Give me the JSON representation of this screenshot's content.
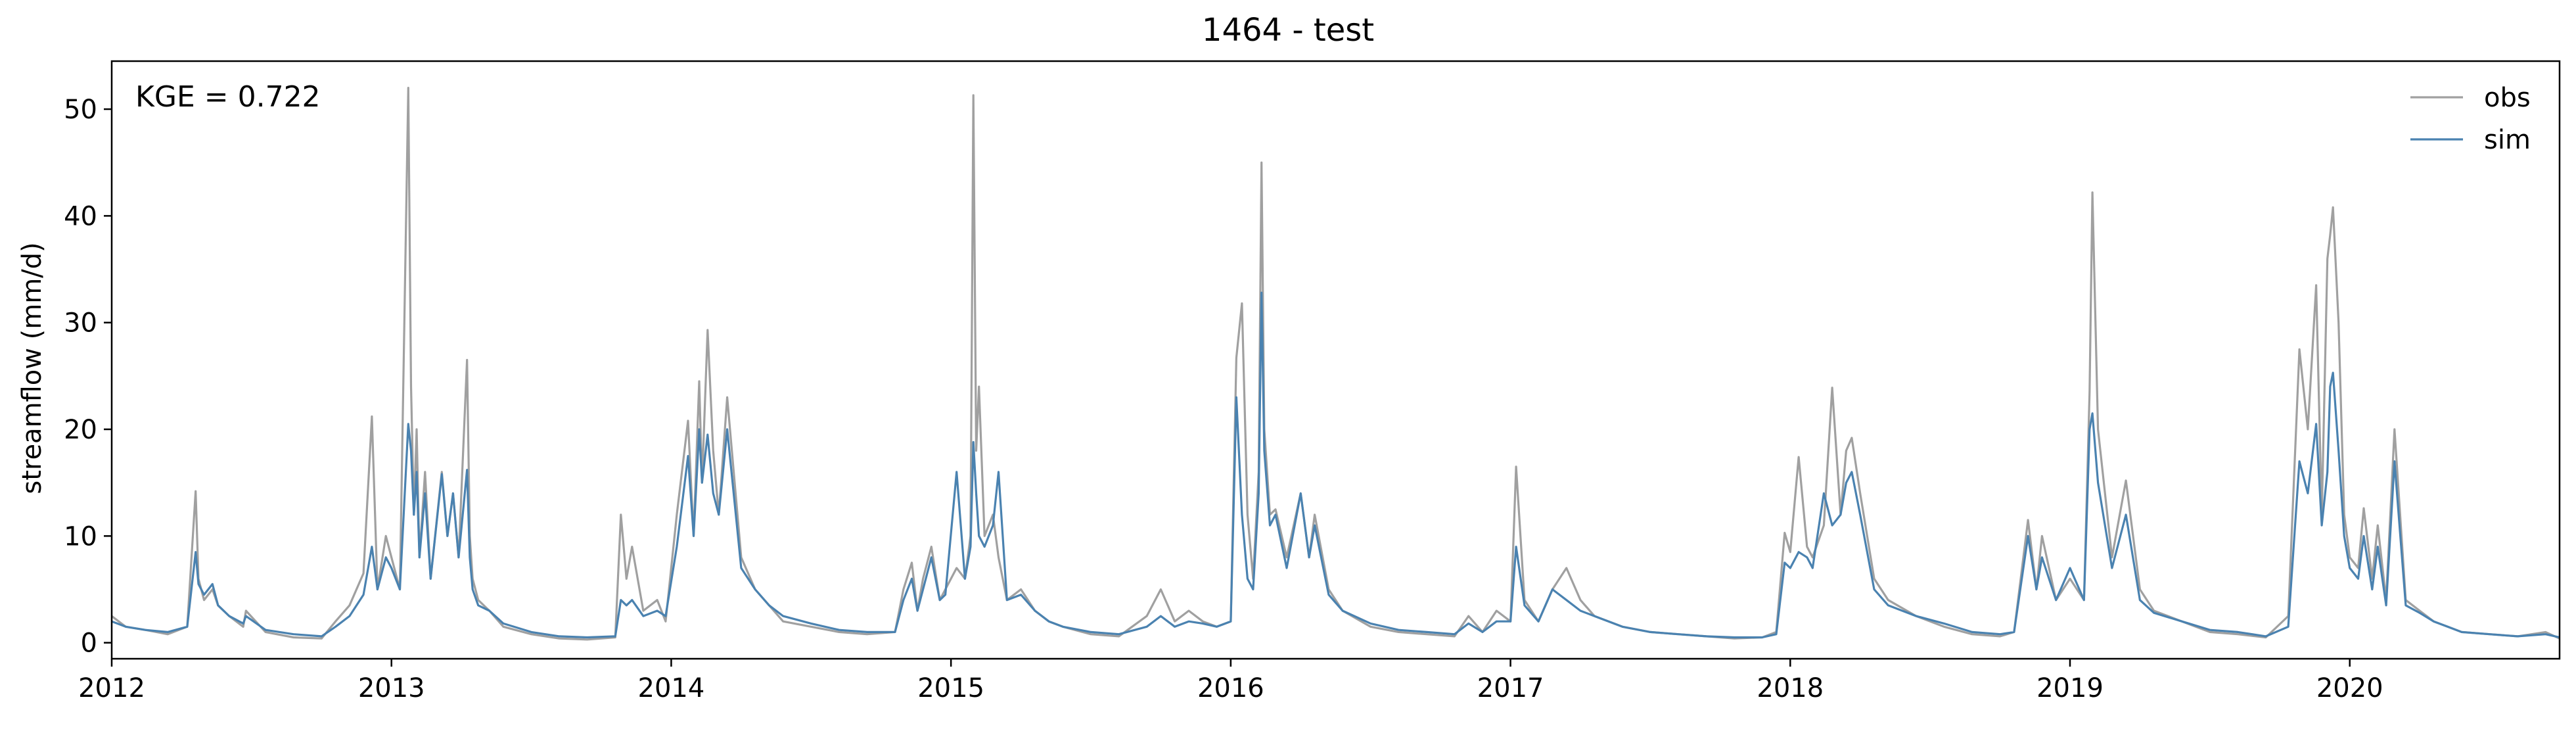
{
  "chart_data": {
    "type": "line",
    "title": "1464 - test",
    "xlabel": "",
    "ylabel": "streamflow (mm/d)",
    "annotation": "KGE = 0.722",
    "legend_position": "top-right",
    "grid": false,
    "xlim": [
      2012.0,
      2020.75
    ],
    "ylim": [
      -1.5,
      54.5
    ],
    "x_ticks": [
      2012,
      2013,
      2014,
      2015,
      2016,
      2017,
      2018,
      2019,
      2020
    ],
    "x_tick_labels": [
      "2012",
      "2013",
      "2014",
      "2015",
      "2016",
      "2017",
      "2018",
      "2019",
      "2020"
    ],
    "y_ticks": [
      0,
      10,
      20,
      30,
      40,
      50
    ],
    "y_tick_labels": [
      "0",
      "10",
      "20",
      "30",
      "40",
      "50"
    ],
    "series": [
      {
        "name": "obs",
        "color": "#a0a0a0",
        "x": [
          2012.0,
          2012.05,
          2012.12,
          2012.2,
          2012.27,
          2012.3,
          2012.31,
          2012.33,
          2012.36,
          2012.38,
          2012.42,
          2012.47,
          2012.48,
          2012.55,
          2012.65,
          2012.75,
          2012.8,
          2012.85,
          2012.9,
          2012.93,
          2012.95,
          2012.98,
          2013.0,
          2013.03,
          2013.06,
          2013.07,
          2013.08,
          2013.09,
          2013.1,
          2013.12,
          2013.14,
          2013.18,
          2013.2,
          2013.22,
          2013.24,
          2013.27,
          2013.28,
          2013.29,
          2013.31,
          2013.35,
          2013.4,
          2013.5,
          2013.6,
          2013.7,
          2013.8,
          2013.82,
          2013.84,
          2013.86,
          2013.9,
          2013.95,
          2013.98,
          2014.02,
          2014.06,
          2014.08,
          2014.1,
          2014.11,
          2014.13,
          2014.15,
          2014.17,
          2014.2,
          2014.25,
          2014.3,
          2014.35,
          2014.4,
          2014.5,
          2014.6,
          2014.7,
          2014.8,
          2014.83,
          2014.86,
          2014.88,
          2014.9,
          2014.93,
          2014.96,
          2014.98,
          2015.02,
          2015.05,
          2015.07,
          2015.08,
          2015.09,
          2015.1,
          2015.12,
          2015.15,
          2015.17,
          2015.2,
          2015.25,
          2015.3,
          2015.35,
          2015.4,
          2015.5,
          2015.6,
          2015.7,
          2015.75,
          2015.8,
          2015.85,
          2015.9,
          2015.95,
          2016.0,
          2016.02,
          2016.04,
          2016.06,
          2016.08,
          2016.1,
          2016.11,
          2016.12,
          2016.14,
          2016.16,
          2016.2,
          2016.25,
          2016.28,
          2016.3,
          2016.35,
          2016.4,
          2016.5,
          2016.6,
          2016.7,
          2016.8,
          2016.85,
          2016.9,
          2016.95,
          2017.0,
          2017.02,
          2017.05,
          2017.1,
          2017.15,
          2017.2,
          2017.25,
          2017.3,
          2017.4,
          2017.5,
          2017.6,
          2017.7,
          2017.8,
          2017.9,
          2017.95,
          2017.98,
          2018.0,
          2018.03,
          2018.06,
          2018.08,
          2018.12,
          2018.15,
          2018.18,
          2018.2,
          2018.22,
          2018.25,
          2018.3,
          2018.35,
          2018.45,
          2018.55,
          2018.65,
          2018.75,
          2018.8,
          2018.85,
          2018.88,
          2018.9,
          2018.95,
          2019.0,
          2019.05,
          2019.07,
          2019.08,
          2019.1,
          2019.15,
          2019.2,
          2019.25,
          2019.3,
          2019.4,
          2019.5,
          2019.6,
          2019.7,
          2019.78,
          2019.82,
          2019.85,
          2019.88,
          2019.9,
          2019.92,
          2019.93,
          2019.94,
          2019.96,
          2019.98,
          2020.0,
          2020.03,
          2020.05,
          2020.08,
          2020.1,
          2020.13,
          2020.16,
          2020.2,
          2020.25,
          2020.3,
          2020.35,
          2020.4,
          2020.5,
          2020.6,
          2020.7,
          2020.75
        ],
        "y": [
          2.5,
          1.5,
          1.2,
          0.8,
          1.5,
          14.2,
          6.0,
          4.0,
          5.0,
          3.5,
          2.5,
          1.5,
          3.0,
          1.0,
          0.5,
          0.4,
          2.0,
          3.5,
          6.5,
          21.2,
          5.0,
          10.0,
          8.0,
          5.0,
          52.0,
          24.0,
          12.0,
          20.0,
          8.0,
          16.0,
          6.0,
          16.0,
          10.0,
          14.0,
          8.0,
          26.5,
          10.0,
          6.0,
          4.0,
          3.0,
          1.5,
          0.8,
          0.4,
          0.3,
          0.5,
          12.0,
          6.0,
          9.0,
          3.0,
          4.0,
          2.0,
          12.0,
          20.8,
          10.0,
          24.5,
          15.0,
          29.3,
          18.0,
          12.0,
          23.0,
          8.0,
          5.0,
          3.5,
          2.0,
          1.5,
          1.0,
          0.8,
          1.0,
          5.0,
          7.5,
          3.0,
          6.0,
          9.0,
          4.0,
          5.0,
          7.0,
          6.0,
          10.0,
          51.3,
          18.0,
          24.0,
          10.0,
          12.0,
          8.0,
          4.0,
          5.0,
          3.0,
          2.0,
          1.5,
          0.8,
          0.6,
          2.5,
          5.0,
          2.0,
          3.0,
          2.0,
          1.5,
          2.0,
          26.7,
          31.8,
          12.0,
          6.0,
          16.0,
          45.0,
          20.0,
          12.0,
          12.5,
          8.0,
          14.0,
          8.0,
          12.0,
          5.0,
          3.0,
          1.5,
          1.0,
          0.8,
          0.6,
          2.5,
          1.0,
          3.0,
          2.0,
          16.5,
          4.0,
          2.0,
          5.0,
          7.0,
          4.0,
          2.5,
          1.5,
          1.0,
          0.8,
          0.6,
          0.4,
          0.5,
          1.0,
          10.3,
          8.5,
          17.4,
          9.0,
          8.0,
          11.0,
          23.9,
          12.0,
          18.0,
          19.2,
          14.0,
          6.0,
          4.0,
          2.5,
          1.5,
          0.8,
          0.6,
          1.0,
          11.5,
          5.0,
          10.0,
          4.0,
          6.0,
          4.0,
          23.5,
          42.2,
          20.0,
          8.0,
          15.2,
          5.0,
          3.0,
          2.0,
          1.0,
          0.8,
          0.5,
          2.5,
          27.5,
          20.0,
          33.5,
          12.0,
          36.0,
          38.2,
          40.8,
          30.0,
          12.0,
          8.0,
          7.0,
          12.6,
          6.0,
          11.0,
          4.0,
          20.0,
          4.0,
          3.0,
          2.0,
          1.5,
          1.0,
          0.8,
          0.6,
          1.0,
          0.4
        ]
      },
      {
        "name": "sim",
        "color": "#4a82b0",
        "x": [
          2012.0,
          2012.05,
          2012.12,
          2012.2,
          2012.27,
          2012.3,
          2012.31,
          2012.33,
          2012.36,
          2012.38,
          2012.42,
          2012.47,
          2012.48,
          2012.55,
          2012.65,
          2012.75,
          2012.8,
          2012.85,
          2012.9,
          2012.93,
          2012.95,
          2012.98,
          2013.0,
          2013.03,
          2013.06,
          2013.07,
          2013.08,
          2013.09,
          2013.1,
          2013.12,
          2013.14,
          2013.18,
          2013.2,
          2013.22,
          2013.24,
          2013.27,
          2013.28,
          2013.29,
          2013.31,
          2013.35,
          2013.4,
          2013.5,
          2013.6,
          2013.7,
          2013.8,
          2013.82,
          2013.84,
          2013.86,
          2013.9,
          2013.95,
          2013.98,
          2014.02,
          2014.06,
          2014.08,
          2014.1,
          2014.11,
          2014.13,
          2014.15,
          2014.17,
          2014.2,
          2014.25,
          2014.3,
          2014.35,
          2014.4,
          2014.5,
          2014.6,
          2014.7,
          2014.8,
          2014.83,
          2014.86,
          2014.88,
          2014.9,
          2014.93,
          2014.96,
          2014.98,
          2015.02,
          2015.05,
          2015.07,
          2015.08,
          2015.09,
          2015.1,
          2015.12,
          2015.15,
          2015.17,
          2015.2,
          2015.25,
          2015.3,
          2015.35,
          2015.4,
          2015.5,
          2015.6,
          2015.7,
          2015.75,
          2015.8,
          2015.85,
          2015.9,
          2015.95,
          2016.0,
          2016.02,
          2016.04,
          2016.06,
          2016.08,
          2016.1,
          2016.11,
          2016.12,
          2016.14,
          2016.16,
          2016.2,
          2016.25,
          2016.28,
          2016.3,
          2016.35,
          2016.4,
          2016.5,
          2016.6,
          2016.7,
          2016.8,
          2016.85,
          2016.9,
          2016.95,
          2017.0,
          2017.02,
          2017.05,
          2017.1,
          2017.15,
          2017.2,
          2017.25,
          2017.3,
          2017.4,
          2017.5,
          2017.6,
          2017.7,
          2017.8,
          2017.9,
          2017.95,
          2017.98,
          2018.0,
          2018.03,
          2018.06,
          2018.08,
          2018.12,
          2018.15,
          2018.18,
          2018.2,
          2018.22,
          2018.25,
          2018.3,
          2018.35,
          2018.45,
          2018.55,
          2018.65,
          2018.75,
          2018.8,
          2018.85,
          2018.88,
          2018.9,
          2018.95,
          2019.0,
          2019.05,
          2019.07,
          2019.08,
          2019.1,
          2019.15,
          2019.2,
          2019.25,
          2019.3,
          2019.4,
          2019.5,
          2019.6,
          2019.7,
          2019.78,
          2019.82,
          2019.85,
          2019.88,
          2019.9,
          2019.92,
          2019.93,
          2019.94,
          2019.96,
          2019.98,
          2020.0,
          2020.03,
          2020.05,
          2020.08,
          2020.1,
          2020.13,
          2020.16,
          2020.2,
          2020.25,
          2020.3,
          2020.35,
          2020.4,
          2020.5,
          2020.6,
          2020.7,
          2020.75
        ],
        "y": [
          2.0,
          1.5,
          1.2,
          1.0,
          1.5,
          8.5,
          5.5,
          4.5,
          5.5,
          3.5,
          2.5,
          1.8,
          2.5,
          1.2,
          0.8,
          0.6,
          1.5,
          2.5,
          4.5,
          9.0,
          5.0,
          8.0,
          7.0,
          5.0,
          20.5,
          18.0,
          12.0,
          16.0,
          8.0,
          14.0,
          6.0,
          15.8,
          10.0,
          14.0,
          8.0,
          16.2,
          8.0,
          5.0,
          3.5,
          3.0,
          1.8,
          1.0,
          0.6,
          0.5,
          0.6,
          4.0,
          3.5,
          4.0,
          2.5,
          3.0,
          2.5,
          9.0,
          17.5,
          10.0,
          20.0,
          15.0,
          19.5,
          14.0,
          12.0,
          20.0,
          7.0,
          5.0,
          3.5,
          2.5,
          1.8,
          1.2,
          1.0,
          1.0,
          4.0,
          6.0,
          3.0,
          5.0,
          8.0,
          4.0,
          4.5,
          16.0,
          6.0,
          9.0,
          18.8,
          14.0,
          10.0,
          9.0,
          11.0,
          16.0,
          4.0,
          4.5,
          3.0,
          2.0,
          1.5,
          1.0,
          0.8,
          1.5,
          2.5,
          1.5,
          2.0,
          1.8,
          1.5,
          2.0,
          23.0,
          12.0,
          6.0,
          5.0,
          14.0,
          32.8,
          18.0,
          11.0,
          12.0,
          7.0,
          14.0,
          8.0,
          11.0,
          4.5,
          3.0,
          1.8,
          1.2,
          1.0,
          0.8,
          1.8,
          1.0,
          2.0,
          2.0,
          9.0,
          3.5,
          2.0,
          5.0,
          4.0,
          3.0,
          2.5,
          1.5,
          1.0,
          0.8,
          0.6,
          0.5,
          0.5,
          0.8,
          7.5,
          7.0,
          8.5,
          8.0,
          7.0,
          14.0,
          11.0,
          12.0,
          15.0,
          16.0,
          12.0,
          5.0,
          3.5,
          2.5,
          1.8,
          1.0,
          0.8,
          1.0,
          10.0,
          5.0,
          8.0,
          4.0,
          7.0,
          4.0,
          20.0,
          21.5,
          15.0,
          7.0,
          12.0,
          4.0,
          2.8,
          2.0,
          1.2,
          1.0,
          0.6,
          1.5,
          17.0,
          14.0,
          20.5,
          11.0,
          16.0,
          24.0,
          25.3,
          18.0,
          10.0,
          7.0,
          6.0,
          10.0,
          5.0,
          9.0,
          3.5,
          17.0,
          3.5,
          2.8,
          2.0,
          1.5,
          1.0,
          0.8,
          0.6,
          0.8,
          0.5
        ]
      }
    ]
  }
}
